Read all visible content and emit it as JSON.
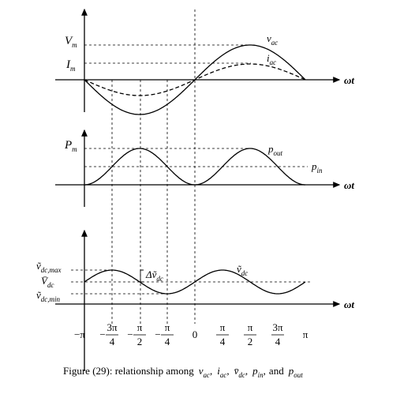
{
  "panel1": {
    "axis_label": "ωt",
    "labels": [
      {
        "base": "V",
        "sub": "m"
      },
      {
        "base": "I",
        "sub": "m"
      },
      {
        "base": "v",
        "sub": "ac"
      },
      {
        "base": "i",
        "sub": "ac"
      }
    ]
  },
  "panel2": {
    "axis_label": "ωt",
    "labels": [
      {
        "base": "P",
        "sub": "m"
      },
      {
        "base": "p",
        "sub": "out"
      },
      {
        "base": "p",
        "sub": "in"
      }
    ]
  },
  "panel3": {
    "axis_label": "ωt",
    "labels": [
      {
        "base": "ṽ",
        "sub": "dc,max"
      },
      {
        "base": "V̄",
        "sub": "dc"
      },
      {
        "base": "ṽ",
        "sub": "dc,min"
      },
      {
        "base": "Δṽ",
        "sub": "dc"
      },
      {
        "base": "ṽ",
        "sub": "dc"
      }
    ]
  },
  "ticks": [
    {
      "text": "−π"
    },
    {
      "sign": "−",
      "num": "3π",
      "den": "4"
    },
    {
      "sign": "−",
      "num": "π",
      "den": "2"
    },
    {
      "sign": "−",
      "num": "π",
      "den": "4"
    },
    {
      "text": "0"
    },
    {
      "num": "π",
      "den": "4"
    },
    {
      "num": "π",
      "den": "2"
    },
    {
      "num": "3π",
      "den": "4"
    },
    {
      "text": "π"
    }
  ],
  "caption": {
    "prefix": "Figure (29): relationship among",
    "separator": ",",
    "items": [
      {
        "base": "v",
        "sub": "ac"
      },
      {
        "base": "i",
        "sub": "ac"
      },
      {
        "base": "v̄",
        "sub": "dc"
      },
      {
        "base": "p",
        "sub": "in"
      }
    ],
    "conjunction": "and",
    "last": {
      "base": "p",
      "sub": "out"
    }
  }
}
